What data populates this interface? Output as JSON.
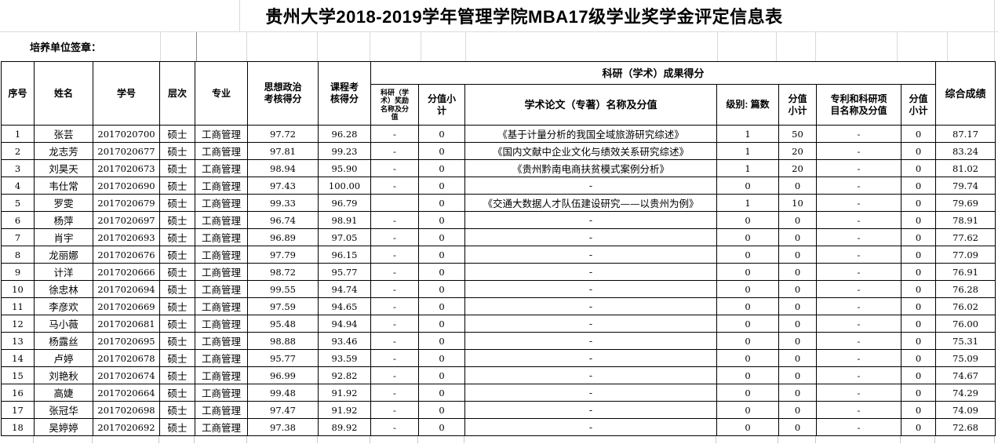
{
  "title": "贵州大学2018-2019学年管理学院MBA17级学业奖学金评定信息表",
  "signature_label": "培养单位签章：",
  "table": {
    "headers": {
      "seq": "序号",
      "name": "姓名",
      "student_id": "学号",
      "level": "层次",
      "major": "专业",
      "politics": "思想政治考核得分",
      "course": "课程考核得分",
      "research_group": "科研（学术）成果得分",
      "award": "科研（学术）奖励名称及分值",
      "award_subtotal": "分值小计",
      "paper": "学术论文（专著）名称及分值",
      "paper_level": "级别: 篇数",
      "paper_subtotal": "分值小计",
      "patent": "专利和科研项目名称及分值",
      "patent_subtotal": "分值小计",
      "total": "综合成绩"
    },
    "rows": [
      [
        "1",
        "张芸",
        "2017020700",
        "硕士",
        "工商管理",
        "97.72",
        "96.28",
        "-",
        "0",
        "《基于计量分析的我国全域旅游研究综述》",
        "1",
        "50",
        "-",
        "0",
        "87.17"
      ],
      [
        "2",
        "龙志芳",
        "2017020677",
        "硕士",
        "工商管理",
        "97.81",
        "99.23",
        "-",
        "0",
        "《国内文献中企业文化与绩效关系研究综述》",
        "1",
        "20",
        "-",
        "0",
        "83.24"
      ],
      [
        "3",
        "刘昊天",
        "2017020673",
        "硕士",
        "工商管理",
        "98.94",
        "95.90",
        "-",
        "0",
        "《贵州黔南电商扶贫模式案例分析》",
        "1",
        "20",
        "-",
        "0",
        "81.02"
      ],
      [
        "4",
        "韦仕常",
        "2017020690",
        "硕士",
        "工商管理",
        "97.43",
        "100.00",
        "-",
        "0",
        "-",
        "0",
        "0",
        "-",
        "0",
        "79.74"
      ],
      [
        "5",
        "罗雯",
        "2017020679",
        "硕士",
        "工商管理",
        "99.33",
        "96.79",
        "",
        "0",
        "《交通大数据人才队伍建设研究——以贵州为例》",
        "1",
        "10",
        "-",
        "0",
        "79.69"
      ],
      [
        "6",
        "杨萍",
        "2017020697",
        "硕士",
        "工商管理",
        "96.74",
        "98.91",
        "-",
        "0",
        "-",
        "0",
        "0",
        "-",
        "0",
        "78.91"
      ],
      [
        "7",
        "肖宇",
        "2017020693",
        "硕士",
        "工商管理",
        "96.89",
        "97.05",
        "-",
        "0",
        "-",
        "0",
        "0",
        "-",
        "0",
        "77.62"
      ],
      [
        "8",
        "龙丽娜",
        "2017020676",
        "硕士",
        "工商管理",
        "97.79",
        "96.15",
        "-",
        "0",
        "-",
        "0",
        "0",
        "-",
        "0",
        "77.09"
      ],
      [
        "9",
        "计洋",
        "2017020666",
        "硕士",
        "工商管理",
        "98.72",
        "95.77",
        "-",
        "0",
        "-",
        "0",
        "0",
        "-",
        "0",
        "76.91"
      ],
      [
        "10",
        "徐忠林",
        "2017020694",
        "硕士",
        "工商管理",
        "99.55",
        "94.74",
        "-",
        "0",
        "-",
        "0",
        "0",
        "-",
        "0",
        "76.28"
      ],
      [
        "11",
        "李彦欢",
        "2017020669",
        "硕士",
        "工商管理",
        "97.59",
        "94.65",
        "-",
        "0",
        "-",
        "0",
        "0",
        "-",
        "0",
        "76.02"
      ],
      [
        "12",
        "马小薇",
        "2017020681",
        "硕士",
        "工商管理",
        "95.48",
        "94.94",
        "-",
        "0",
        "-",
        "0",
        "0",
        "-",
        "0",
        "76.00"
      ],
      [
        "13",
        "杨露丝",
        "2017020695",
        "硕士",
        "工商管理",
        "98.88",
        "93.46",
        "-",
        "0",
        "-",
        "0",
        "0",
        "-",
        "0",
        "75.31"
      ],
      [
        "14",
        "卢婷",
        "2017020678",
        "硕士",
        "工商管理",
        "95.77",
        "93.59",
        "-",
        "0",
        "-",
        "0",
        "0",
        "-",
        "0",
        "75.09"
      ],
      [
        "15",
        "刘艳秋",
        "2017020674",
        "硕士",
        "工商管理",
        "96.99",
        "92.82",
        "-",
        "0",
        "-",
        "0",
        "0",
        "-",
        "0",
        "74.67"
      ],
      [
        "16",
        "高婕",
        "2017020664",
        "硕士",
        "工商管理",
        "99.48",
        "91.92",
        "-",
        "0",
        "-",
        "0",
        "0",
        "-",
        "0",
        "74.29"
      ],
      [
        "17",
        "张冠华",
        "2017020698",
        "硕士",
        "工商管理",
        "97.47",
        "91.92",
        "-",
        "0",
        "-",
        "0",
        "0",
        "-",
        "0",
        "74.09"
      ],
      [
        "18",
        "吴婷婷",
        "2017020692",
        "硕士",
        "工商管理",
        "97.38",
        "89.92",
        "-",
        "0",
        "-",
        "0",
        "0",
        "-",
        "0",
        "72.68"
      ]
    ]
  }
}
